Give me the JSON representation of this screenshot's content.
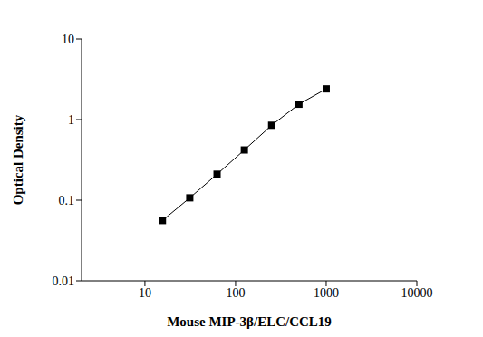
{
  "chart_data": {
    "type": "line",
    "x_label": "Mouse MIP-3β/ELC/CCL19",
    "y_label": "Optical Density",
    "x": [
      15.6,
      31.25,
      62.5,
      125,
      250,
      500,
      1000
    ],
    "values": [
      0.056,
      0.107,
      0.21,
      0.42,
      0.85,
      1.55,
      2.4
    ],
    "xlim": [
      2,
      10000
    ],
    "xticks": [
      10,
      100,
      1000,
      10000
    ],
    "ylim": [
      0.01,
      10
    ],
    "yticks": [
      0.01,
      0.1,
      1,
      10
    ],
    "log": true,
    "color": "#000000",
    "marker": "square",
    "grid": false
  }
}
